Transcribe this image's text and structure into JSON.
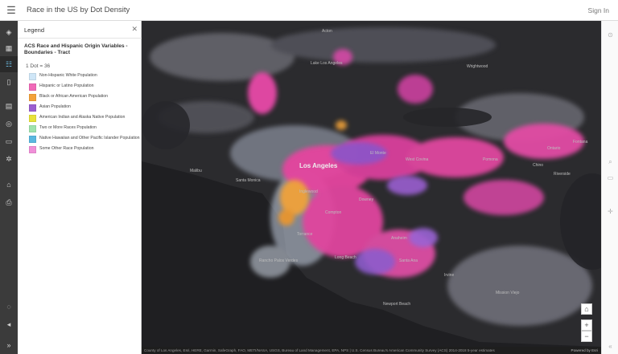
{
  "header": {
    "title": "Race in the US by Dot Density",
    "sign_in": "Sign In"
  },
  "rail": {
    "icons": [
      "layers-icon",
      "basemap-icon",
      "legend-icon",
      "bookmark-icon",
      "table-icon",
      "analysis-icon",
      "folder-icon",
      "settings-icon",
      "share-icon",
      "print-icon"
    ],
    "bottom_icons": [
      "gallery-icon",
      "feedback-icon",
      "collapse-icon"
    ]
  },
  "legend": {
    "panel_title": "Legend",
    "layer_title": "ACS Race and Hispanic Origin Variables - Boundaries - Tract",
    "dot_note": "1 Dot = 36",
    "items": [
      {
        "label": "Non-Hispanic White Population",
        "color": "#cfe6f7"
      },
      {
        "label": "Hispanic or Latino Population",
        "color": "#f06ab8"
      },
      {
        "label": "Black or African American Population",
        "color": "#f3a23a"
      },
      {
        "label": "Asian Population",
        "color": "#9b5fd0"
      },
      {
        "label": "American Indian and Alaska Native Population",
        "color": "#e8e23a"
      },
      {
        "label": "Two or More Races Population",
        "color": "#9fe3ad"
      },
      {
        "label": "Native Hawaiian and Other Pacific Islander Population",
        "color": "#5ab8e0"
      },
      {
        "label": "Some Other Race Population",
        "color": "#f08fd8"
      }
    ]
  },
  "map": {
    "places": [
      "Acton",
      "Lake Los Angeles",
      "Wrightwood",
      "Los Angeles",
      "Malibu",
      "Santa Monica",
      "El Monte",
      "West Covina",
      "Pomona",
      "Chino",
      "Ontario",
      "Fontana",
      "Inglewood",
      "Compton",
      "Downey",
      "Torrance",
      "Long Beach",
      "Anaheim",
      "Santa Ana",
      "Irvine",
      "Rancho Palos Verdes",
      "Newport Beach",
      "Mission Viejo",
      "Riverside"
    ],
    "attribution": "County of Los Angeles, Esri, HERE, Garmin, SafeGraph, FAO, METI/NASA, USGS, Bureau of Land Management, EPA, NPS | U.S. Census Bureau's American Community Survey (ACS) 2014-2018 5-year estimates",
    "powered_by": "Powered by Esri"
  },
  "controls": {
    "home": "⌂",
    "zoom_in": "+",
    "zoom_out": "−"
  }
}
